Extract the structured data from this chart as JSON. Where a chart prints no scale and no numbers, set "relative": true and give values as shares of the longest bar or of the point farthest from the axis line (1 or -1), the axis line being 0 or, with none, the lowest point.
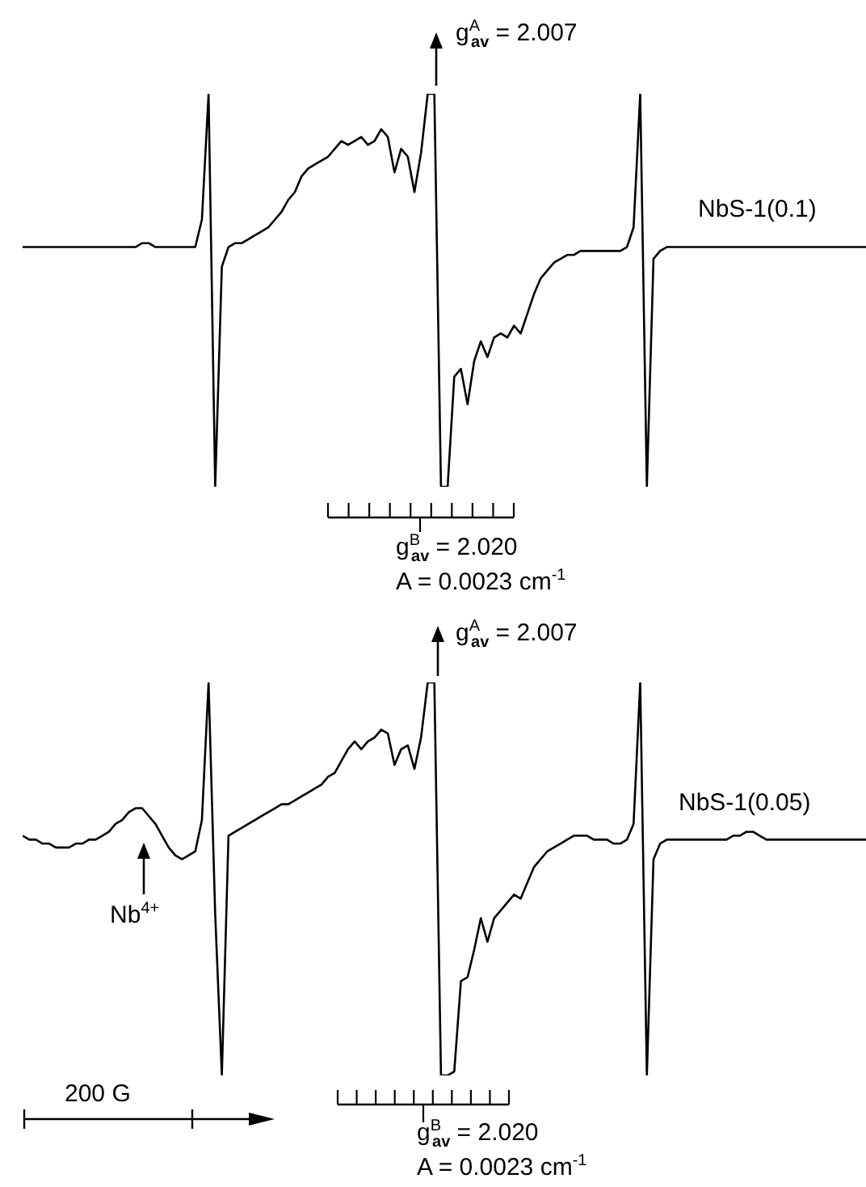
{
  "chart_data": [
    {
      "type": "line",
      "relative": true,
      "tick_labels": false,
      "categories": [
        null,
        null,
        null,
        null,
        null,
        null,
        null,
        null,
        null,
        null,
        null,
        null,
        null,
        null,
        null,
        null,
        null,
        null,
        null,
        null,
        null,
        null,
        null,
        null,
        null,
        null,
        null,
        null,
        null,
        null,
        null,
        null,
        null,
        null,
        null,
        null,
        null,
        null,
        null,
        null,
        null,
        null,
        null,
        null,
        null,
        null,
        null,
        null,
        null,
        null,
        null,
        null,
        null,
        null,
        null,
        null,
        null,
        null,
        null,
        null,
        null,
        null,
        null,
        null,
        null,
        null,
        null,
        null,
        null,
        null,
        null,
        null,
        null,
        null,
        null,
        null,
        null,
        null,
        null,
        null,
        null,
        null,
        null,
        null,
        null,
        null,
        null,
        null,
        null,
        null,
        null,
        null,
        null,
        null,
        null,
        null,
        null,
        null,
        null,
        null,
        null,
        null,
        null,
        null,
        null,
        null,
        null,
        null,
        null,
        null,
        null,
        null,
        null,
        null,
        null,
        null,
        null,
        null,
        null,
        null,
        null,
        null,
        null,
        null,
        null,
        null,
        null,
        null
      ],
      "series": [
        {
          "color": "#000000",
          "values": [
            0.61,
            0.61,
            0.61,
            0.61,
            0.61,
            0.61,
            0.61,
            0.61,
            0.61,
            0.61,
            0.61,
            0.61,
            0.61,
            0.61,
            0.61,
            0.61,
            0.61,
            0.61,
            0.62,
            0.62,
            0.61,
            0.61,
            0.61,
            0.61,
            0.61,
            0.61,
            0.61,
            0.68,
            1.0,
            0.0,
            0.56,
            0.61,
            0.62,
            0.62,
            0.63,
            0.64,
            0.65,
            0.66,
            0.68,
            0.7,
            0.73,
            0.75,
            0.79,
            0.81,
            0.82,
            0.83,
            0.84,
            0.86,
            0.88,
            0.87,
            0.88,
            0.89,
            0.87,
            0.88,
            0.91,
            0.89,
            0.8,
            0.86,
            0.84,
            0.75,
            0.85,
            1.0,
            1.0,
            0.0,
            0.0,
            0.28,
            0.3,
            0.21,
            0.32,
            0.37,
            0.33,
            0.38,
            0.39,
            0.38,
            0.41,
            0.39,
            0.44,
            0.49,
            0.53,
            0.55,
            0.57,
            0.58,
            0.59,
            0.59,
            0.6,
            0.6,
            0.6,
            0.6,
            0.6,
            0.6,
            0.6,
            0.61,
            0.66,
            1.0,
            0.0,
            0.58,
            0.6,
            0.61,
            0.61,
            0.61,
            0.61,
            0.61,
            0.61,
            0.61,
            0.61,
            0.61,
            0.61,
            0.61,
            0.61,
            0.61,
            0.61,
            0.61,
            0.61,
            0.61,
            0.61,
            0.61,
            0.61,
            0.61,
            0.61,
            0.61,
            0.61,
            0.61,
            0.61,
            0.61,
            0.61,
            0.61,
            0.61,
            0.61
          ]
        }
      ],
      "annotations": [
        "g$^{A}$$_{av}$ = 2.007",
        "NbS-1(0.1)",
        "g$^{B}$$_{av}$ = 2.020",
        "A = 0.0023 cm$^{-1}$"
      ]
    },
    {
      "type": "line",
      "relative": true,
      "tick_labels": false,
      "categories": [
        null,
        null,
        null,
        null,
        null,
        null,
        null,
        null,
        null,
        null,
        null,
        null,
        null,
        null,
        null,
        null,
        null,
        null,
        null,
        null,
        null,
        null,
        null,
        null,
        null,
        null,
        null,
        null,
        null,
        null,
        null,
        null,
        null,
        null,
        null,
        null,
        null,
        null,
        null,
        null,
        null,
        null,
        null,
        null,
        null,
        null,
        null,
        null,
        null,
        null,
        null,
        null,
        null,
        null,
        null,
        null,
        null,
        null,
        null,
        null,
        null,
        null,
        null,
        null,
        null,
        null,
        null,
        null,
        null,
        null,
        null,
        null,
        null,
        null,
        null,
        null,
        null,
        null,
        null,
        null,
        null,
        null,
        null,
        null,
        null,
        null,
        null,
        null,
        null,
        null,
        null,
        null,
        null,
        null,
        null,
        null,
        null,
        null,
        null,
        null,
        null,
        null,
        null,
        null,
        null,
        null,
        null,
        null,
        null,
        null,
        null,
        null,
        null,
        null,
        null,
        null,
        null,
        null,
        null,
        null,
        null,
        null,
        null,
        null,
        null,
        null,
        null,
        null
      ],
      "series": [
        {
          "color": "#000000",
          "values": [
            0.61,
            0.6,
            0.6,
            0.59,
            0.59,
            0.58,
            0.58,
            0.58,
            0.59,
            0.59,
            0.6,
            0.6,
            0.61,
            0.62,
            0.64,
            0.65,
            0.67,
            0.68,
            0.68,
            0.66,
            0.64,
            0.61,
            0.58,
            0.56,
            0.55,
            0.56,
            0.57,
            0.65,
            1.0,
            0.41,
            0.0,
            0.61,
            0.62,
            0.63,
            0.64,
            0.65,
            0.66,
            0.67,
            0.68,
            0.69,
            0.69,
            0.7,
            0.71,
            0.72,
            0.73,
            0.74,
            0.76,
            0.77,
            0.8,
            0.83,
            0.85,
            0.83,
            0.85,
            0.86,
            0.88,
            0.87,
            0.79,
            0.83,
            0.84,
            0.78,
            0.86,
            1.0,
            1.0,
            0.0,
            0.0,
            0.01,
            0.24,
            0.25,
            0.32,
            0.4,
            0.34,
            0.4,
            0.42,
            0.44,
            0.46,
            0.45,
            0.49,
            0.53,
            0.55,
            0.57,
            0.58,
            0.59,
            0.6,
            0.61,
            0.61,
            0.61,
            0.6,
            0.6,
            0.6,
            0.59,
            0.59,
            0.6,
            0.64,
            1.0,
            0.0,
            0.55,
            0.59,
            0.6,
            0.6,
            0.6,
            0.6,
            0.6,
            0.6,
            0.6,
            0.6,
            0.6,
            0.6,
            0.61,
            0.61,
            0.62,
            0.62,
            0.61,
            0.6,
            0.6,
            0.6,
            0.6,
            0.6,
            0.6,
            0.6,
            0.6,
            0.6,
            0.6,
            0.6,
            0.6,
            0.6,
            0.6,
            0.6,
            0.6
          ]
        }
      ],
      "annotations": [
        "g$^{A}$$_{av}$ = 2.007",
        "NbS-1(0.05)",
        "Nb$^{4+}$",
        "200 G",
        "g$^{B}$$_{av}$ = 2.020",
        "A = 0.0023 cm$^{-1}$"
      ]
    }
  ]
}
